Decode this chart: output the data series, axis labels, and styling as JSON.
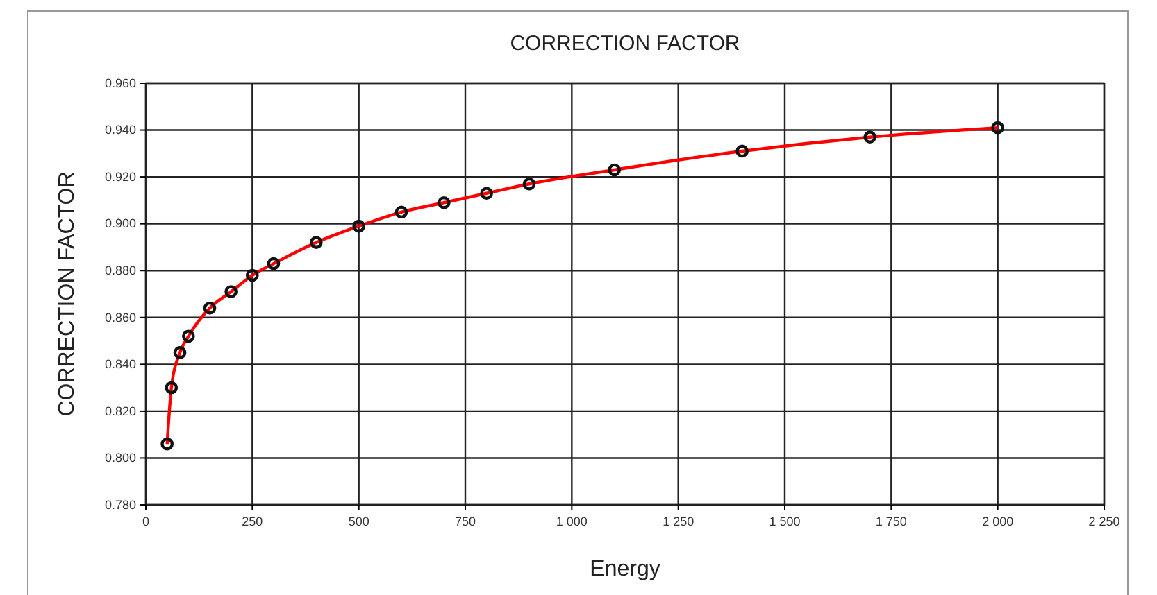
{
  "chart_data": {
    "type": "line",
    "title": "CORRECTION FACTOR",
    "xlabel": "Energy",
    "ylabel": "CORRECTION FACTOR",
    "x": [
      50,
      60,
      80,
      100,
      150,
      200,
      250,
      300,
      400,
      500,
      600,
      700,
      800,
      900,
      1100,
      1400,
      1700,
      2000
    ],
    "series": [
      {
        "color": "#ff0000",
        "values": [
          0.806,
          0.83,
          0.845,
          0.852,
          0.864,
          0.871,
          0.878,
          0.883,
          0.892,
          0.899,
          0.905,
          0.909,
          0.913,
          0.917,
          0.923,
          0.931,
          0.937,
          0.941
        ]
      }
    ],
    "xlim": [
      0,
      2250
    ],
    "xticks": [
      0,
      250,
      500,
      750,
      {
        "value": 1000,
        "label": "1 000"
      },
      {
        "value": 1250,
        "label": "1 250"
      },
      {
        "value": 1500,
        "label": "1 500"
      },
      {
        "value": 1750,
        "label": "1 750"
      },
      {
        "value": 2000,
        "label": "2 000"
      },
      {
        "value": 2250,
        "label": "2 250"
      }
    ],
    "ylim": [
      0.78,
      0.96
    ],
    "yticks": [
      {
        "value": 0.78,
        "label": "0.780"
      },
      {
        "value": 0.8,
        "label": "0.800"
      },
      {
        "value": 0.82,
        "label": "0.820"
      },
      {
        "value": 0.84,
        "label": "0.840"
      },
      {
        "value": 0.86,
        "label": "0.860"
      },
      {
        "value": 0.88,
        "label": "0.880"
      },
      {
        "value": 0.9,
        "label": "0.900"
      },
      {
        "value": 0.92,
        "label": "0.920"
      },
      {
        "value": 0.94,
        "label": "0.940"
      },
      {
        "value": 0.96,
        "label": "0.960"
      }
    ],
    "grid": true,
    "marker": "circle",
    "line_style": "solid"
  }
}
